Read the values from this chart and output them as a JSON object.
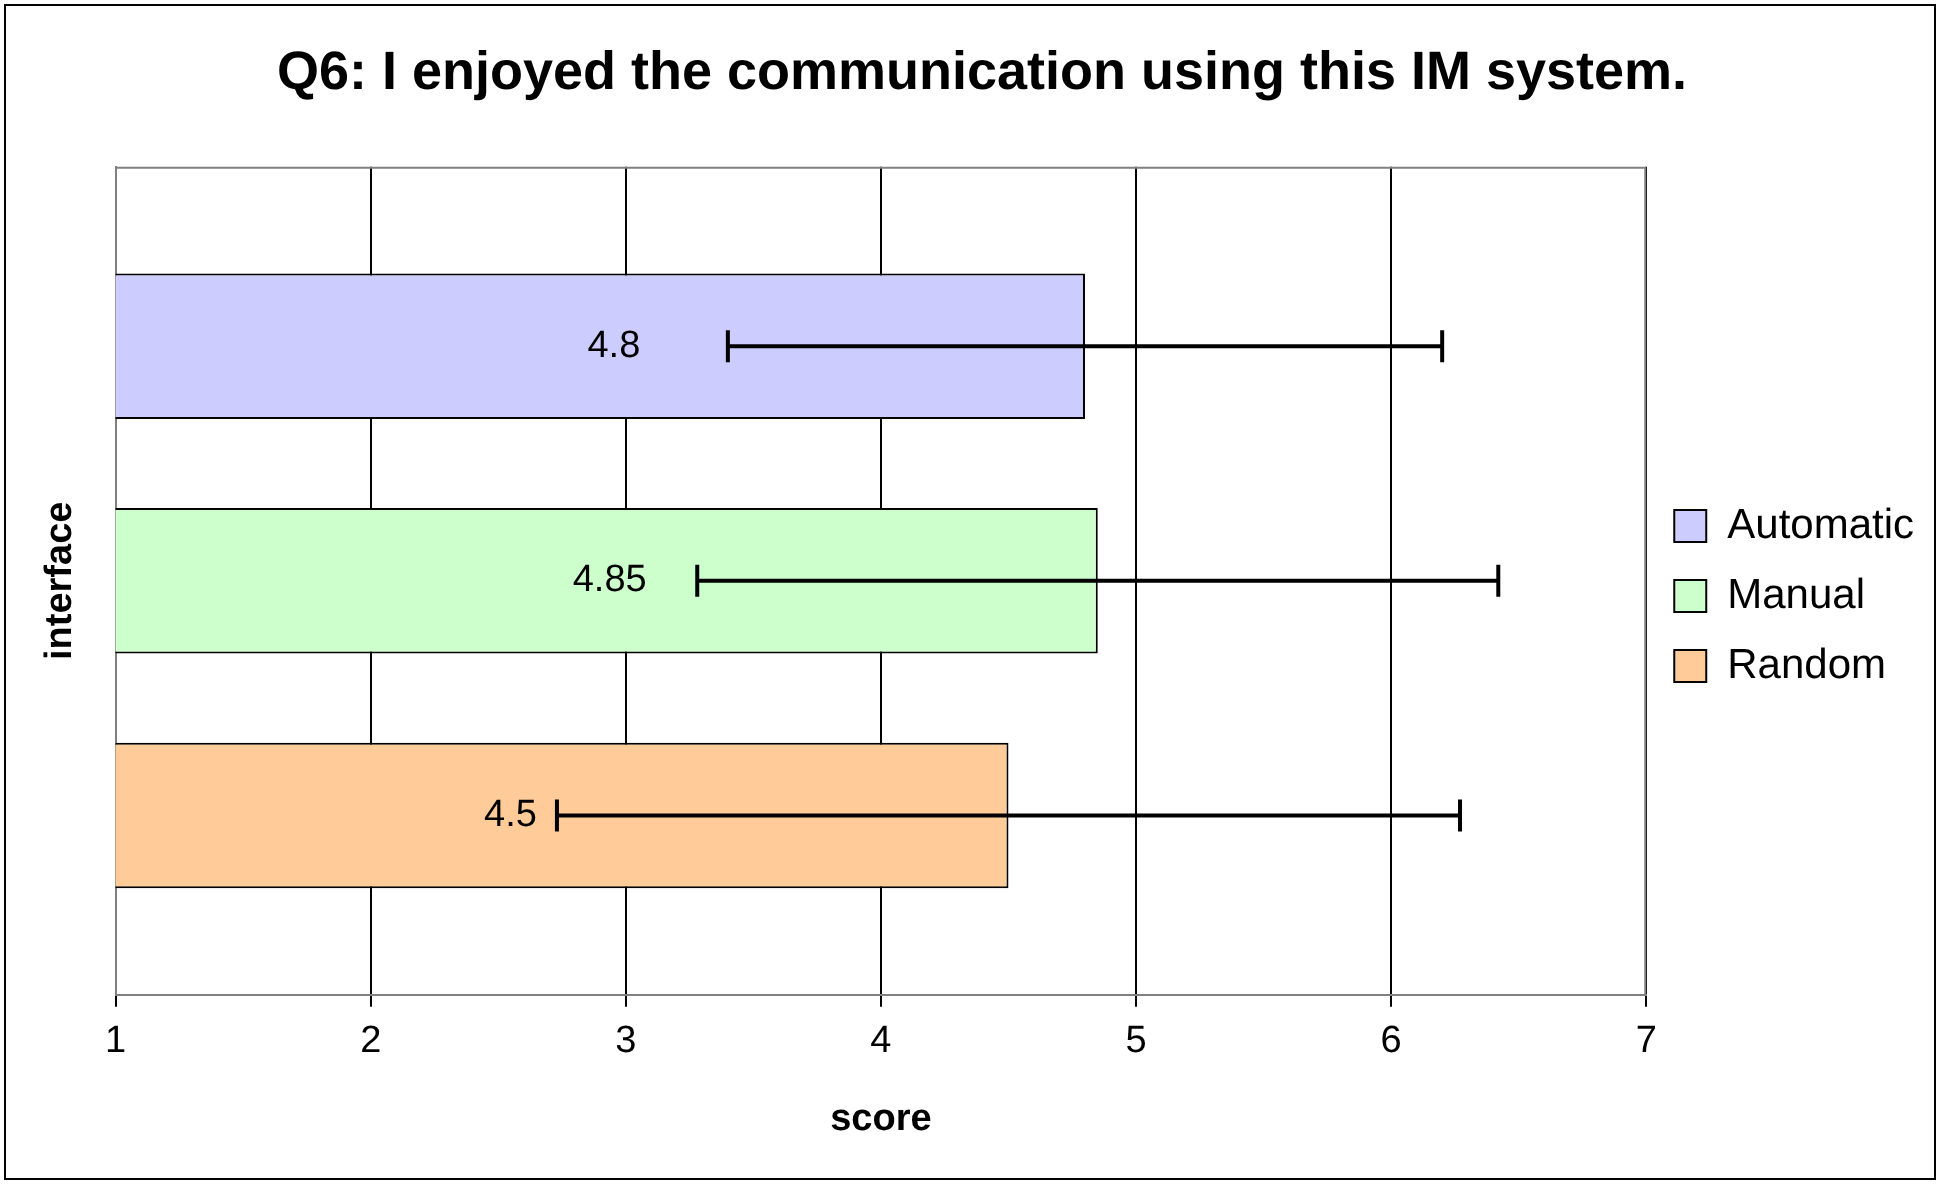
{
  "chart_data": {
    "type": "bar",
    "orientation": "horizontal",
    "title": "Q6: I enjoyed the communication using this IM system.",
    "xlabel": "score",
    "ylabel": "interface",
    "categories": [
      null
    ],
    "series": [
      {
        "name": "Automatic",
        "color": "#ccccff",
        "values": [
          4.8
        ],
        "errors": [
          1.4
        ]
      },
      {
        "name": "Manual",
        "color": "#ccffcc",
        "values": [
          4.85
        ],
        "errors": [
          1.57
        ]
      },
      {
        "name": "Random",
        "color": "#ffcc99",
        "values": [
          4.5
        ],
        "errors": [
          1.77
        ]
      }
    ],
    "xlim": [
      1,
      7
    ],
    "xticks": [
      1,
      2,
      3,
      4,
      5,
      6,
      7
    ],
    "grid": "x",
    "legend": "right",
    "data_labels": true
  }
}
